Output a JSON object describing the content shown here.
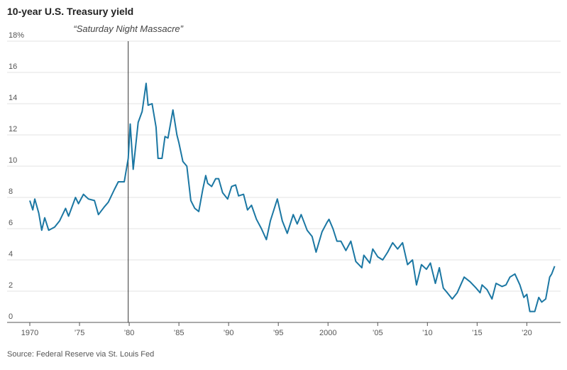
{
  "chart_data": {
    "type": "line",
    "title": "10-year U.S. Treasury yield",
    "source": "Source: Federal Reserve via St. Louis Fed",
    "annotation": {
      "label": "“Saturday Night Massacre”",
      "x": 1979.9
    },
    "xlim": [
      1969.5,
      2023.4
    ],
    "xticks": [
      1970,
      {
        "value": 1975,
        "label": "’75"
      },
      {
        "value": 1980,
        "label": "’80"
      },
      {
        "value": 1985,
        "label": "’85"
      },
      {
        "value": 1990,
        "label": "’90"
      },
      {
        "value": 1995,
        "label": "’95"
      },
      2000,
      {
        "value": 2005,
        "label": "’05"
      },
      {
        "value": 2010,
        "label": "’10"
      },
      {
        "value": 2015,
        "label": "’15"
      },
      {
        "value": 2020,
        "label": "’20"
      }
    ],
    "ylim": [
      0,
      18
    ],
    "yticks": [
      0,
      2,
      4,
      6,
      8,
      10,
      12,
      14,
      16,
      {
        "value": 18,
        "label": "18%"
      }
    ],
    "grid": true,
    "series": [
      {
        "name": "10-year yield",
        "color": "#1b77a3",
        "x": [
          1970.0,
          1970.3,
          1970.5,
          1970.9,
          1971.2,
          1971.5,
          1971.9,
          1972.5,
          1973.0,
          1973.6,
          1973.9,
          1974.6,
          1974.9,
          1975.4,
          1975.9,
          1976.5,
          1976.9,
          1977.5,
          1977.9,
          1978.5,
          1978.9,
          1979.5,
          1979.9,
          1980.1,
          1980.4,
          1980.6,
          1980.9,
          1981.3,
          1981.7,
          1981.9,
          1982.3,
          1982.7,
          1982.9,
          1983.3,
          1983.6,
          1983.9,
          1984.4,
          1984.8,
          1985.0,
          1985.4,
          1985.8,
          1986.2,
          1986.6,
          1987.0,
          1987.4,
          1987.7,
          1987.9,
          1988.3,
          1988.7,
          1989.0,
          1989.4,
          1989.9,
          1990.3,
          1990.7,
          1991.0,
          1991.5,
          1991.9,
          1992.3,
          1992.8,
          1993.3,
          1993.8,
          1994.2,
          1994.9,
          1995.4,
          1995.9,
          1996.5,
          1996.9,
          1997.3,
          1997.9,
          1998.4,
          1998.8,
          1999.4,
          1999.9,
          2000.1,
          2000.5,
          2000.9,
          2001.3,
          2001.8,
          2002.3,
          2002.8,
          2003.4,
          2003.6,
          2004.2,
          2004.5,
          2005.0,
          2005.5,
          2006.0,
          2006.5,
          2007.0,
          2007.5,
          2008.0,
          2008.5,
          2008.9,
          2009.4,
          2009.9,
          2010.3,
          2010.8,
          2011.2,
          2011.6,
          2012.0,
          2012.5,
          2013.0,
          2013.7,
          2014.3,
          2014.9,
          2015.3,
          2015.5,
          2016.0,
          2016.5,
          2016.9,
          2017.5,
          2017.9,
          2018.3,
          2018.8,
          2019.3,
          2019.7,
          2020.0,
          2020.3,
          2020.8,
          2021.2,
          2021.5,
          2021.9,
          2022.3,
          2022.5,
          2022.8
        ],
        "values": [
          7.8,
          7.2,
          7.9,
          7.0,
          5.9,
          6.7,
          5.9,
          6.1,
          6.5,
          7.3,
          6.8,
          8.0,
          7.6,
          8.2,
          7.9,
          7.8,
          6.9,
          7.4,
          7.7,
          8.5,
          9.0,
          9.0,
          10.5,
          12.7,
          9.8,
          11.0,
          12.8,
          13.5,
          15.3,
          13.9,
          14.0,
          12.5,
          10.5,
          10.5,
          11.9,
          11.8,
          13.6,
          12.0,
          11.5,
          10.3,
          10.0,
          7.8,
          7.3,
          7.1,
          8.5,
          9.4,
          8.9,
          8.7,
          9.2,
          9.2,
          8.3,
          7.9,
          8.7,
          8.8,
          8.1,
          8.2,
          7.2,
          7.5,
          6.6,
          6.0,
          5.3,
          6.5,
          7.9,
          6.5,
          5.7,
          6.9,
          6.3,
          6.9,
          5.9,
          5.5,
          4.5,
          5.8,
          6.4,
          6.6,
          6.0,
          5.2,
          5.2,
          4.6,
          5.2,
          3.9,
          3.5,
          4.3,
          3.8,
          4.7,
          4.2,
          4.0,
          4.5,
          5.1,
          4.7,
          5.1,
          3.7,
          4.0,
          2.4,
          3.7,
          3.4,
          3.8,
          2.5,
          3.5,
          2.2,
          1.9,
          1.5,
          1.9,
          2.9,
          2.6,
          2.2,
          1.9,
          2.4,
          2.1,
          1.5,
          2.5,
          2.3,
          2.4,
          2.9,
          3.1,
          2.4,
          1.6,
          1.8,
          0.7,
          0.7,
          1.6,
          1.3,
          1.5,
          2.9,
          3.1,
          3.6
        ]
      }
    ]
  }
}
